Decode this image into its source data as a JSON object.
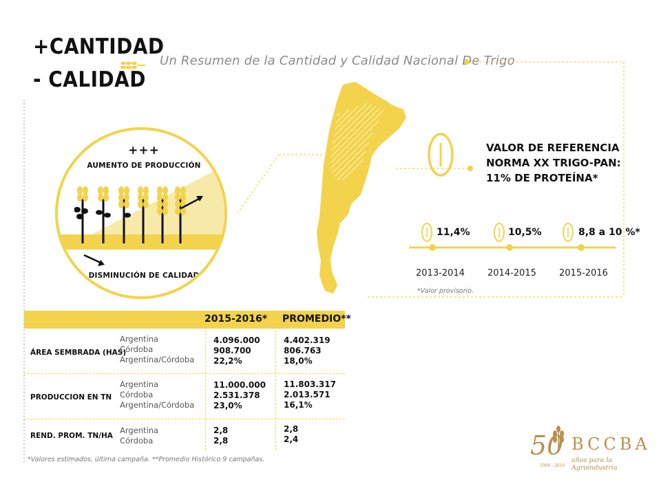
{
  "header": {
    "title_line1": "+CANTIDAD",
    "title_line2": "- CALIDAD",
    "subtitle": "Un Resumen de la Cantidad y Calidad Nacional De Trigo"
  },
  "circle": {
    "plus_signs": "+++",
    "top_label": "AUMENTO DE PRODUCCIÓN",
    "bottom_label": "DISMINUCIÓN DE CALIDAD"
  },
  "reference": {
    "line1": "VALOR DE REFERENCIA",
    "line2": "NORMA XX TRIGO-PAN:",
    "line3": "11% DE PROTEÍNA*"
  },
  "timeline": [
    {
      "year": "2013-2014",
      "value": "11,4%"
    },
    {
      "year": "2014-2015",
      "value": "10,5%"
    },
    {
      "year": "2015-2016",
      "value": "8,8 a 10 %*"
    }
  ],
  "timeline_note": "*Valor provisorio.",
  "table": {
    "col1": "2015-2016*",
    "col2": "PROMEDIO**",
    "rows": [
      {
        "label": "ÁREA SEMBRADA (HAS)",
        "places": [
          "Argentina",
          "Córdoba",
          "Argentina/Córdoba"
        ],
        "v1": [
          "4.096.000",
          "908.700",
          "22,2%"
        ],
        "v2": [
          "4.402.319",
          "806.763",
          "18,0%"
        ]
      },
      {
        "label": "PRODUCCION EN TN",
        "places": [
          "Argentina",
          "Córdoba",
          "Argentina/Córdoba"
        ],
        "v1": [
          "11.000.000",
          "2.531.378",
          "23,0%"
        ],
        "v2": [
          "11.803.317",
          "2.013.571",
          "16,1%"
        ]
      },
      {
        "label": "REND. PROM. TN/HA",
        "places": [
          "Argentina",
          "Córdoba"
        ],
        "v1": [
          "2,8",
          "2,8"
        ],
        "v2": [
          "2,8",
          "2,4"
        ]
      }
    ],
    "footnote": "*Valores estimados, última campaña. **Promedio Histórico 9 campañas."
  },
  "logo": {
    "number": "50",
    "name": "BCCBA",
    "tagline": "años para la Agroindustria",
    "years": "1966 - 2016"
  },
  "colors": {
    "accent": "#f2d34b",
    "accent_light": "#f7e9a8",
    "dark": "#111111",
    "gold": "#b8904a"
  }
}
